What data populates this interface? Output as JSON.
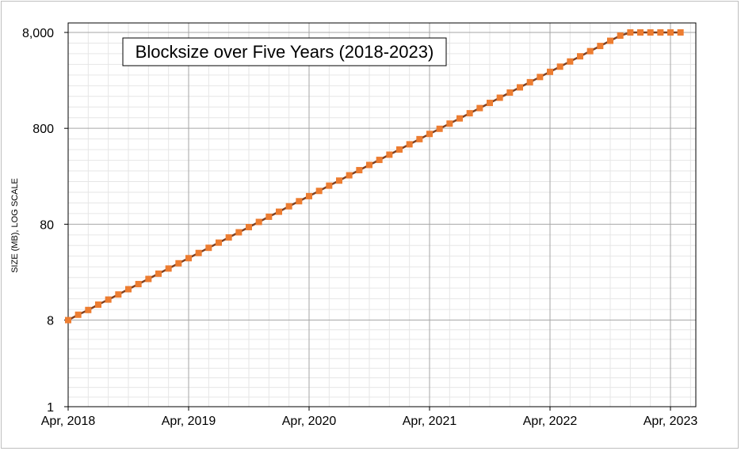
{
  "chart_data": {
    "type": "line",
    "title": "Blocksize over Five Years (2018-2023)",
    "xlabel": "",
    "ylabel": "SIZE (MB), LOG SCALE",
    "y_scale": "log",
    "ylim": [
      1,
      8000
    ],
    "y_ticks": [
      1,
      8,
      80,
      800,
      8000
    ],
    "y_tick_labels": [
      "1",
      "8",
      "80",
      "800",
      "8,000"
    ],
    "x_ticks": [
      "2018-04",
      "2019-04",
      "2020-04",
      "2021-04",
      "2022-04",
      "2023-04"
    ],
    "x_tick_labels": [
      "Apr, 2018",
      "Apr, 2019",
      "Apr, 2020",
      "Apr, 2021",
      "Apr, 2022",
      "Apr, 2023"
    ],
    "grid": true,
    "legend": "none",
    "colors": {
      "marker": "#ed7d31",
      "line": "#7f3f1f",
      "major_grid": "#a6a6a6",
      "minor_grid": "#e6e6e6"
    },
    "series": [
      {
        "x": [
          "2018-04",
          "2018-05",
          "2018-06",
          "2018-07",
          "2018-08",
          "2018-09",
          "2018-10",
          "2018-11",
          "2018-12",
          "2019-01",
          "2019-02",
          "2019-03",
          "2019-04",
          "2019-05",
          "2019-06",
          "2019-07",
          "2019-08",
          "2019-09",
          "2019-10",
          "2019-11",
          "2019-12",
          "2020-01",
          "2020-02",
          "2020-03",
          "2020-04",
          "2020-05",
          "2020-06",
          "2020-07",
          "2020-08",
          "2020-09",
          "2020-10",
          "2020-11",
          "2020-12",
          "2021-01",
          "2021-02",
          "2021-03",
          "2021-04",
          "2021-05",
          "2021-06",
          "2021-07",
          "2021-08",
          "2021-09",
          "2021-10",
          "2021-11",
          "2021-12",
          "2022-01",
          "2022-02",
          "2022-03",
          "2022-04",
          "2022-05",
          "2022-06",
          "2022-07",
          "2022-08",
          "2022-09",
          "2022-10",
          "2022-11",
          "2022-12",
          "2023-01",
          "2023-02",
          "2023-03",
          "2023-04",
          "2023-05"
        ],
        "values": [
          8,
          9.1,
          10.2,
          11.6,
          13.1,
          14.8,
          16.8,
          19.0,
          21.5,
          24.4,
          27.6,
          31.3,
          35.4,
          40.1,
          45.4,
          51.4,
          58.2,
          65.9,
          74.6,
          84.5,
          95.7,
          108,
          123,
          139,
          157,
          178,
          202,
          228,
          259,
          293,
          332,
          375,
          425,
          481,
          545,
          617,
          699,
          791,
          896,
          1015,
          1149,
          1301,
          1473,
          1668,
          1889,
          2139,
          2422,
          2743,
          3106,
          3517,
          3982,
          4510,
          5106,
          5782,
          6547,
          7414,
          8000,
          8000,
          8000,
          8000,
          8000,
          8000
        ]
      }
    ]
  }
}
